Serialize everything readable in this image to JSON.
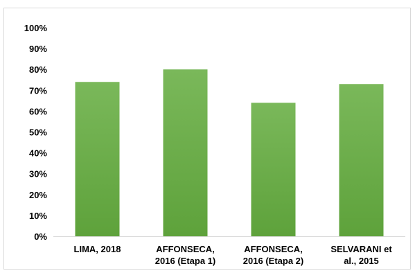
{
  "chart_data": {
    "type": "bar",
    "title": "",
    "xlabel": "",
    "ylabel": "",
    "categories": [
      [
        "LIMA, 2018"
      ],
      [
        "AFFONSECA,",
        "2016 (Etapa 1)"
      ],
      [
        "AFFONSECA,",
        "2016 (Etapa 2)"
      ],
      [
        "SELVARANI et",
        "al., 2015"
      ]
    ],
    "values": [
      0.74,
      0.8,
      0.64,
      0.73
    ],
    "ylim": [
      0,
      1
    ],
    "y_ticks": [
      "0%",
      "10%",
      "20%",
      "30%",
      "40%",
      "50%",
      "60%",
      "70%",
      "80%",
      "90%",
      "100%"
    ],
    "grid": false,
    "legend": "none",
    "bar_color_top": "#7ab85a",
    "bar_color_bottom": "#5ea23b",
    "axis_color": "#d9d9d9"
  }
}
